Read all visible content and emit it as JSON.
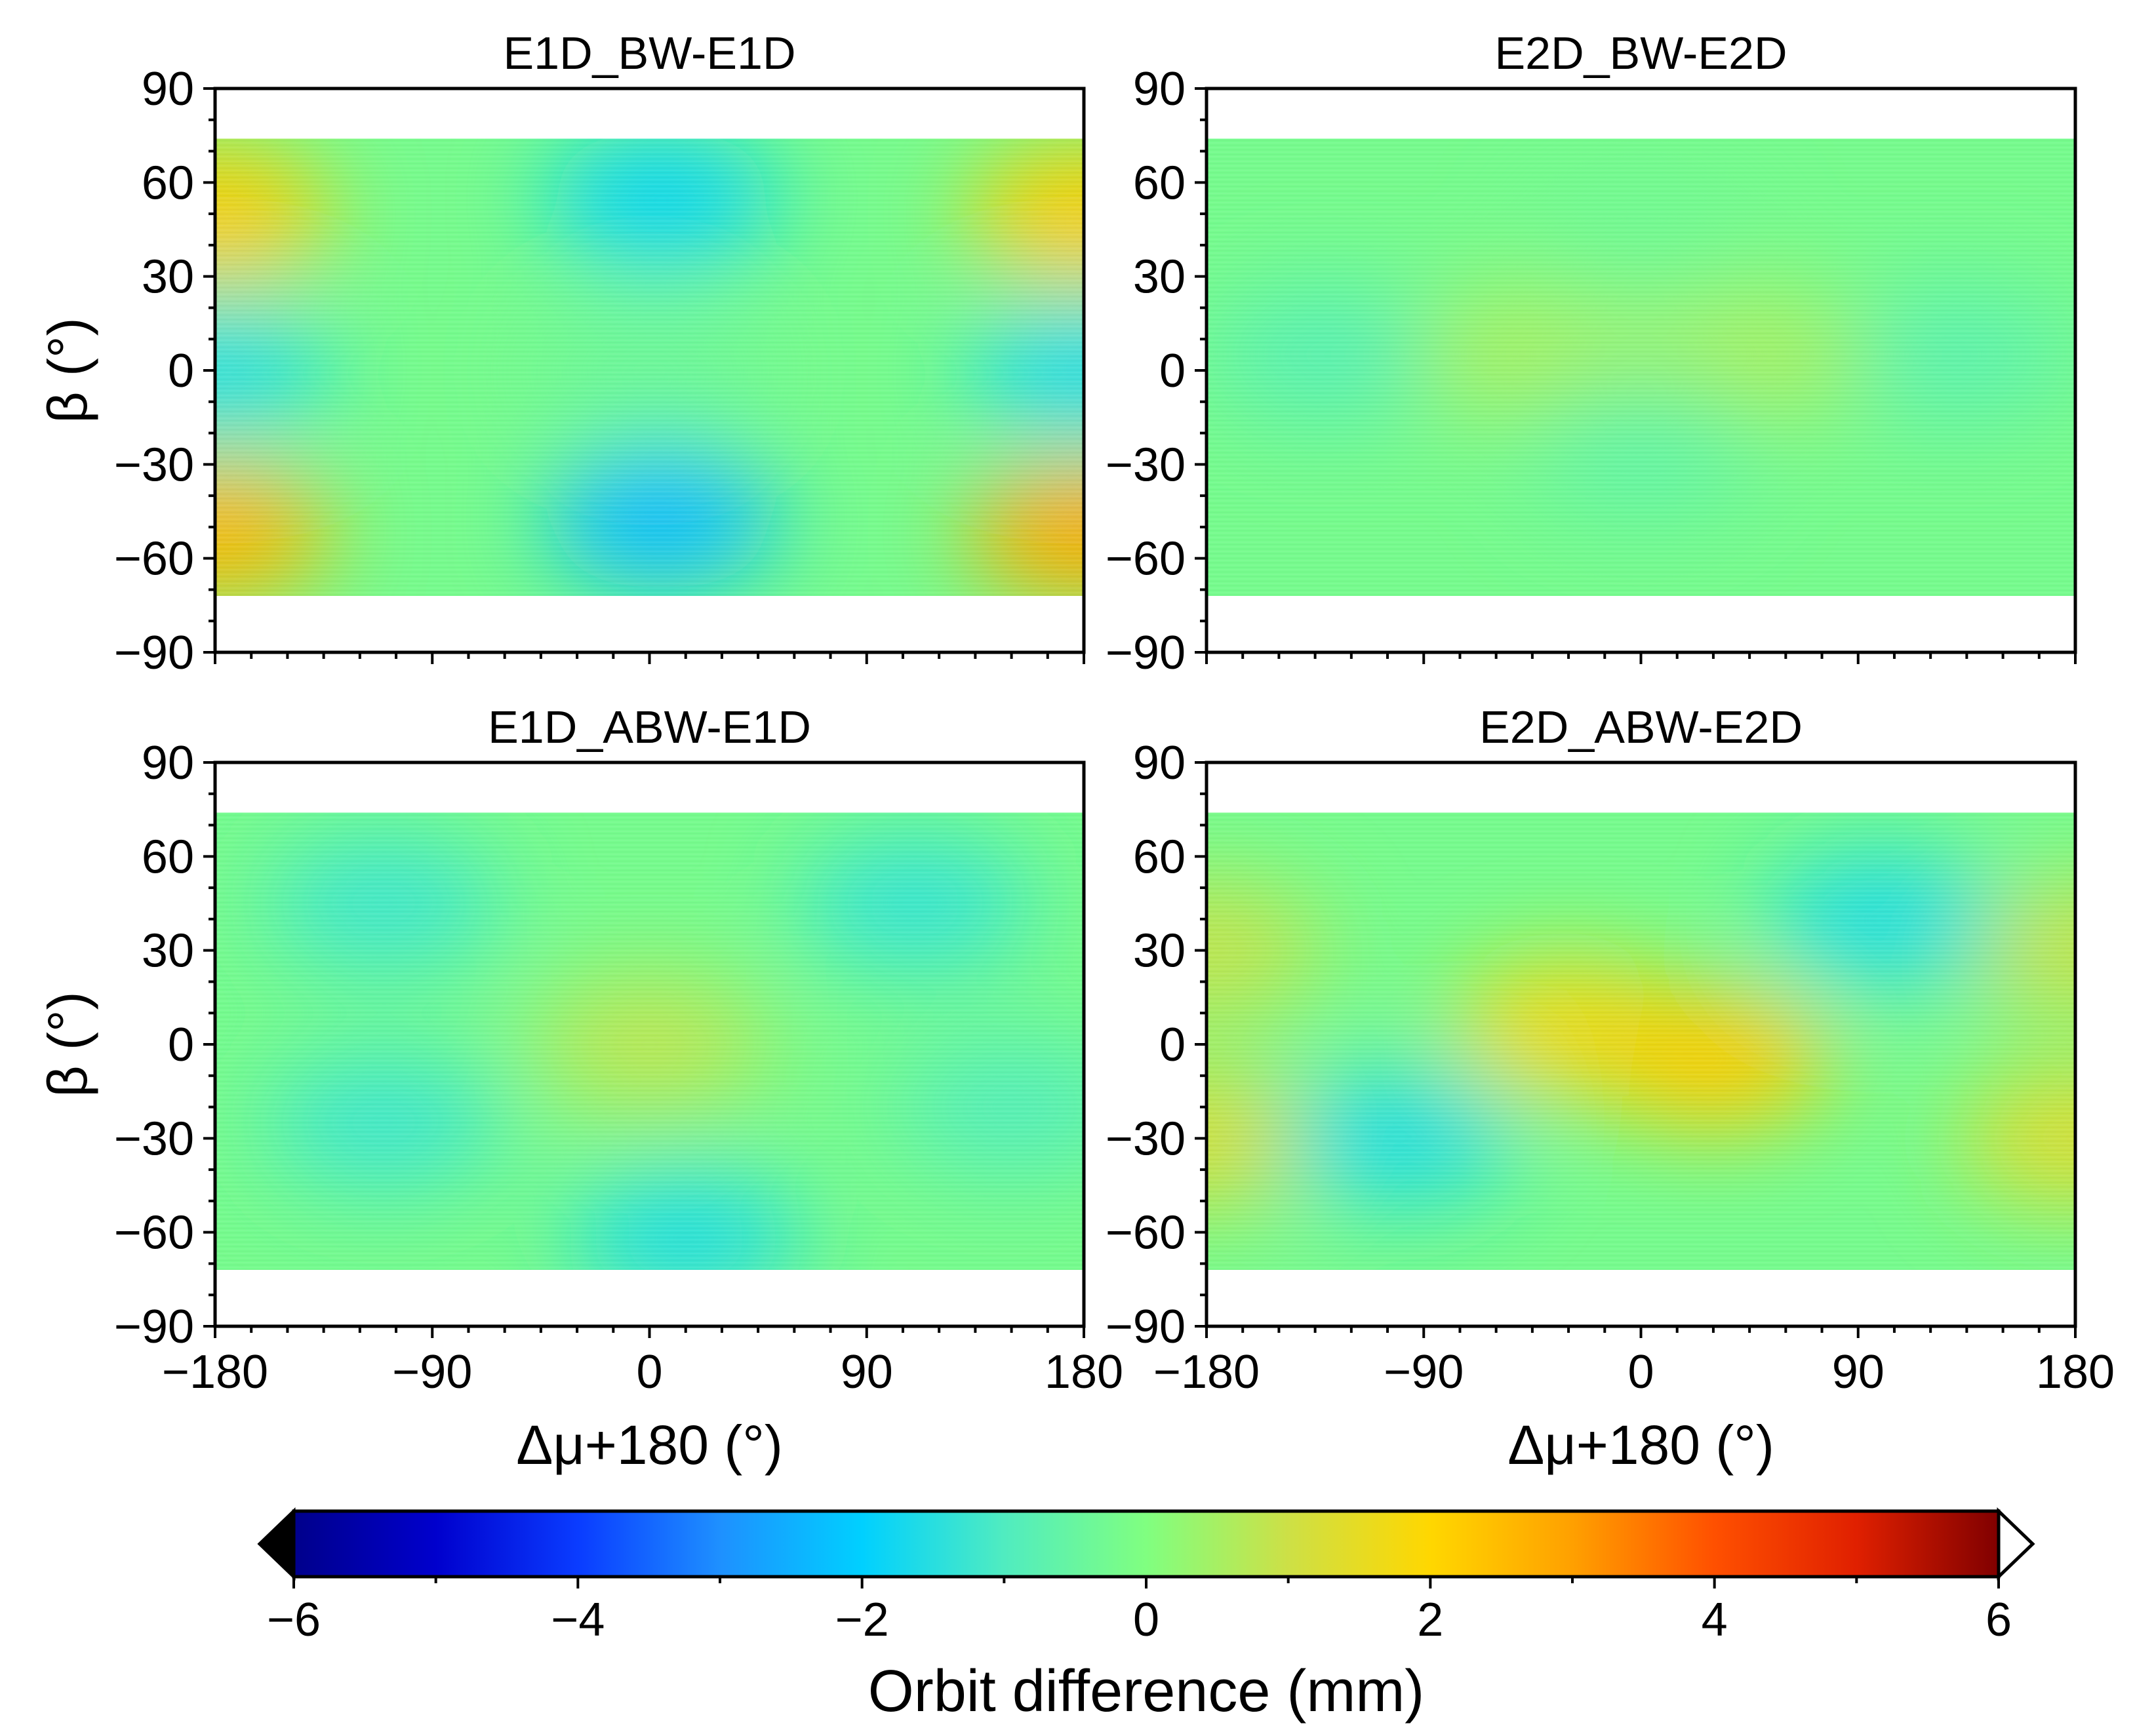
{
  "chart_data": {
    "type": "heatmap",
    "panels": [
      {
        "title": "E1D_BW-E1D",
        "xlabel": "",
        "ylabel": "β (°)",
        "xlim": [
          -180,
          180
        ],
        "ylim": [
          -90,
          90
        ],
        "data_extent_beta": [
          -72,
          74
        ],
        "features": [
          {
            "x": -180,
            "y": 50,
            "value": 2.2
          },
          {
            "x": 180,
            "y": 50,
            "value": 2.2
          },
          {
            "x": -180,
            "y": -52,
            "value": 2.6
          },
          {
            "x": 180,
            "y": -52,
            "value": 2.8
          },
          {
            "x": 5,
            "y": 55,
            "value": -1.8
          },
          {
            "x": 5,
            "y": -48,
            "value": -2.3
          },
          {
            "x": -180,
            "y": 0,
            "value": -1.5
          },
          {
            "x": 180,
            "y": 0,
            "value": -1.6
          },
          {
            "x": 0,
            "y": 0,
            "value": -0.4
          }
        ]
      },
      {
        "title": "E2D_BW-E2D",
        "xlabel": "",
        "ylabel": "",
        "xlim": [
          -180,
          180
        ],
        "ylim": [
          -90,
          90
        ],
        "data_extent_beta": [
          -72,
          74
        ],
        "features": [
          {
            "x": -130,
            "y": 5,
            "value": -0.8
          },
          {
            "x": 130,
            "y": 5,
            "value": -0.7
          },
          {
            "x": -45,
            "y": 5,
            "value": 0.5
          },
          {
            "x": 45,
            "y": 5,
            "value": 0.5
          },
          {
            "x": 0,
            "y": -25,
            "value": -0.6
          },
          {
            "x": 0,
            "y": 40,
            "value": -0.3
          }
        ]
      },
      {
        "title": "E1D_ABW-E1D",
        "xlabel": "Δμ+180 (°)",
        "ylabel": "β (°)",
        "xlim": [
          -180,
          180
        ],
        "ylim": [
          -90,
          90
        ],
        "data_extent_beta": [
          -72,
          74
        ],
        "features": [
          {
            "x": 0,
            "y": 0,
            "value": 0.8
          },
          {
            "x": -110,
            "y": 45,
            "value": -1.2
          },
          {
            "x": 110,
            "y": 45,
            "value": -1.3
          },
          {
            "x": -110,
            "y": -25,
            "value": -1.2
          },
          {
            "x": 15,
            "y": -62,
            "value": -1.5
          },
          {
            "x": 150,
            "y": -20,
            "value": -0.9
          }
        ]
      },
      {
        "title": "E2D_ABW-E2D",
        "xlabel": "Δμ+180 (°)",
        "ylabel": "",
        "xlim": [
          -180,
          180
        ],
        "ylim": [
          -90,
          90
        ],
        "data_extent_beta": [
          -72,
          74
        ],
        "features": [
          {
            "x": -30,
            "y": 5,
            "value": 1.7
          },
          {
            "x": 30,
            "y": -5,
            "value": 2.2
          },
          {
            "x": -180,
            "y": -30,
            "value": 1.2
          },
          {
            "x": 180,
            "y": -30,
            "value": 1.3
          },
          {
            "x": -180,
            "y": 30,
            "value": 0.9
          },
          {
            "x": 180,
            "y": 30,
            "value": 0.9
          },
          {
            "x": -100,
            "y": -30,
            "value": -1.5
          },
          {
            "x": 100,
            "y": 40,
            "value": -1.5
          }
        ]
      }
    ],
    "x_ticks": [
      "−180",
      "−90",
      "0",
      "90",
      "180"
    ],
    "y_ticks": [
      "90",
      "60",
      "30",
      "0",
      "−30",
      "−60",
      "−90"
    ],
    "background_value": -0.2,
    "colorbar": {
      "label": "Orbit difference (mm)",
      "range": [
        -6,
        6
      ],
      "ticks": [
        "−6",
        "−4",
        "−2",
        "0",
        "2",
        "4",
        "6"
      ],
      "extend": "both",
      "stops": [
        "#00008b",
        "#0000cd",
        "#0a3cff",
        "#1e90ff",
        "#00d0ff",
        "#50ecc0",
        "#80ff80",
        "#cde046",
        "#ffd700",
        "#ffa000",
        "#ff5000",
        "#e02000",
        "#800000"
      ],
      "lower_extend_color": "#000000",
      "upper_extend_color": "#ffffff"
    }
  }
}
